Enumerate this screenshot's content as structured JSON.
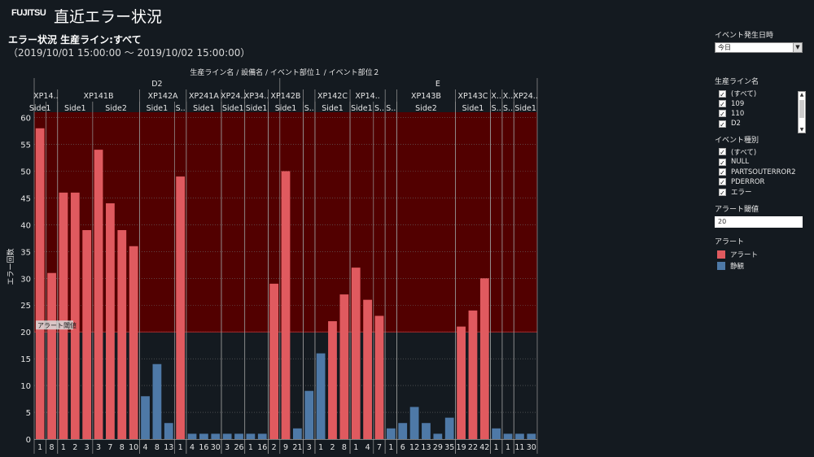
{
  "header": {
    "logo": "FUJITSU",
    "title": "直近エラー状況",
    "subtitle": "エラー状況  生産ライン:すべて",
    "date_range": "（2019/10/01 15:00:00 〜 2019/10/02 15:00:00）"
  },
  "filters": {
    "event_time": {
      "label": "イベント発生日時",
      "value": "今日"
    },
    "line": {
      "label": "生産ライン名",
      "items": [
        "(すべて)",
        "109",
        "110",
        "D2"
      ]
    },
    "event_type": {
      "label": "イベント種別",
      "items": [
        "(すべて)",
        "NULL",
        "PARTSOUTERROR2",
        "PDERROR",
        "エラー"
      ]
    },
    "threshold": {
      "label": "アラート閾値",
      "value": "20"
    },
    "legend": {
      "label": "アラート",
      "items": [
        {
          "label": "アラート",
          "color": "#e05a5f"
        },
        {
          "label": "静観",
          "color": "#4e79a7"
        }
      ]
    }
  },
  "chart_data": {
    "type": "bar",
    "header_label": "生産ライン名  /  設備名  /  イベント部位１  /  イベント部位２",
    "ylabel": "エラー回数",
    "ylim": [
      0,
      61
    ],
    "yticks": [
      0,
      5,
      10,
      15,
      20,
      25,
      30,
      35,
      40,
      45,
      50,
      55,
      60
    ],
    "threshold": 20,
    "threshold_label": "アラート閾値",
    "lines": [
      {
        "name": "D2",
        "first": 0,
        "count": 21
      },
      {
        "name": "E",
        "first": 21,
        "count": 27
      }
    ],
    "equipment": [
      {
        "name": "XP14..",
        "first": 0,
        "count": 2
      },
      {
        "name": "XP141B",
        "first": 2,
        "count": 7
      },
      {
        "name": "XP142A",
        "first": 9,
        "count": 4
      },
      {
        "name": "XP241A",
        "first": 13,
        "count": 3
      },
      {
        "name": "XP24..",
        "first": 16,
        "count": 2
      },
      {
        "name": "XP34..",
        "first": 18,
        "count": 2
      },
      {
        "name": "XP142B",
        "first": 20,
        "count": 3
      },
      {
        "name": "",
        "first": 23,
        "count": 1
      },
      {
        "name": "XP142C",
        "first": 24,
        "count": 3
      },
      {
        "name": "XP14..",
        "first": 27,
        "count": 3
      },
      {
        "name": "",
        "first": 30,
        "count": 1
      },
      {
        "name": "XP143B",
        "first": 31,
        "count": 5
      },
      {
        "name": "XP143C",
        "first": 36,
        "count": 3
      },
      {
        "name": "X..",
        "first": 39,
        "count": 1
      },
      {
        "name": "X..",
        "first": 40,
        "count": 1
      },
      {
        "name": "XP24..",
        "first": 41,
        "count": 2
      }
    ],
    "parts": [
      {
        "name": "Side1",
        "first": 0,
        "count": 1
      },
      {
        "name": "",
        "first": 1,
        "count": 1
      },
      {
        "name": "Side1",
        "first": 2,
        "count": 3
      },
      {
        "name": "Side2",
        "first": 5,
        "count": 4
      },
      {
        "name": "Side1",
        "first": 9,
        "count": 3
      },
      {
        "name": "S..",
        "first": 12,
        "count": 1
      },
      {
        "name": "Side1",
        "first": 13,
        "count": 3
      },
      {
        "name": "Side1",
        "first": 16,
        "count": 2
      },
      {
        "name": "Side1",
        "first": 18,
        "count": 2
      },
      {
        "name": "Side1",
        "first": 20,
        "count": 3
      },
      {
        "name": "S..",
        "first": 23,
        "count": 1
      },
      {
        "name": "Side1",
        "first": 24,
        "count": 3
      },
      {
        "name": "Side1",
        "first": 27,
        "count": 2
      },
      {
        "name": "S..",
        "first": 29,
        "count": 1
      },
      {
        "name": "S..",
        "first": 30,
        "count": 1
      },
      {
        "name": "Side2",
        "first": 31,
        "count": 5
      },
      {
        "name": "Side1",
        "first": 36,
        "count": 3
      },
      {
        "name": "S..",
        "first": 39,
        "count": 1
      },
      {
        "name": "S..",
        "first": 40,
        "count": 1
      },
      {
        "name": "Side1",
        "first": 41,
        "count": 2
      }
    ],
    "categories": [
      "1",
      "8",
      "1",
      "2",
      "3",
      "3",
      "7",
      "8",
      "10",
      "4",
      "8",
      "13",
      "1",
      "4",
      "16",
      "30",
      "3",
      "26",
      "1",
      "16",
      "2",
      "9",
      "21",
      "3",
      "1",
      "2",
      "8",
      "1",
      "4",
      "7",
      "1",
      "6",
      "12",
      "13",
      "29",
      "35",
      "19",
      "22",
      "42",
      "1",
      "1",
      "11",
      "30"
    ],
    "values": [
      58,
      31,
      46,
      46,
      39,
      54,
      44,
      39,
      36,
      8,
      14,
      3,
      49,
      1,
      1,
      1,
      1,
      1,
      1,
      1,
      29,
      50,
      2,
      9,
      16,
      22,
      27,
      32,
      26,
      23,
      2,
      3,
      6,
      3,
      1,
      4,
      21,
      24,
      30,
      2,
      1,
      1,
      1
    ],
    "series": [
      {
        "name": "アラート",
        "color": "#e05a5f"
      },
      {
        "name": "静観",
        "color": "#4e79a7"
      }
    ]
  }
}
